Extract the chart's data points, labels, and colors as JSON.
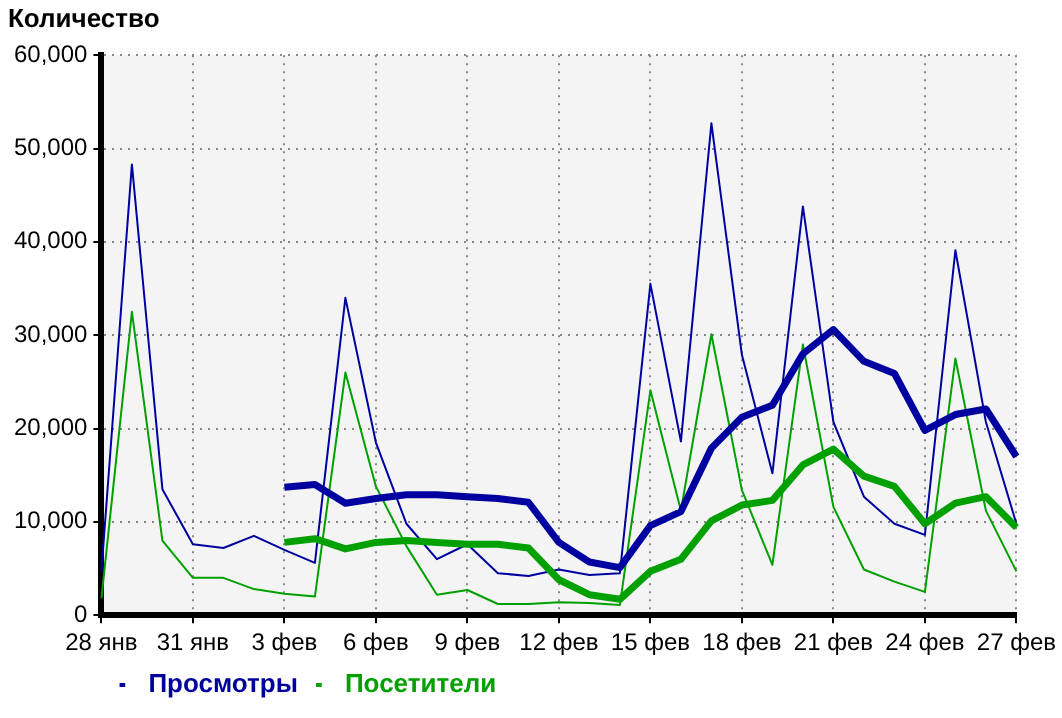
{
  "chart_data": {
    "type": "line",
    "ylabel": "Количество",
    "categories": [
      "28 янв",
      null,
      null,
      "31 янв",
      null,
      null,
      "3 фев",
      null,
      null,
      "6 фев",
      null,
      null,
      "9 фев",
      null,
      null,
      "12 фев",
      null,
      null,
      "15 фев",
      null,
      null,
      "18 фев",
      null,
      null,
      "21 фев",
      null,
      null,
      "24 фев",
      null,
      null,
      "27 фев"
    ],
    "series": [
      {
        "name": "Просмотры",
        "color": "#0000a0",
        "values": [
          4700,
          48300,
          13500,
          7600,
          7200,
          8500,
          7000,
          5600,
          34000,
          18500,
          9800,
          6000,
          7600,
          4500,
          4200,
          4900,
          4300,
          4500,
          35500,
          18600,
          52700,
          27900,
          15200,
          43800,
          20700,
          12700,
          9800,
          8600,
          39100,
          20700,
          9800
        ]
      },
      {
        "name": "Посетители",
        "color": "#00a000",
        "values": [
          1800,
          32500,
          8000,
          4000,
          4000,
          2800,
          2300,
          2000,
          26000,
          13800,
          7400,
          2200,
          2700,
          1200,
          1200,
          1400,
          1300,
          1100,
          24100,
          11200,
          30100,
          13400,
          5400,
          29000,
          11600,
          4900,
          3600,
          2500,
          27500,
          11200,
          4700
        ]
      },
      {
        "color": "#0000a0",
        "values": [
          null,
          null,
          null,
          null,
          null,
          null,
          13700,
          14000,
          12000,
          12500,
          12900,
          12900,
          12700,
          12500,
          12100,
          7800,
          5700,
          5100,
          9600,
          11100,
          17900,
          21200,
          22500,
          28000,
          30600,
          27200,
          25900,
          19800,
          21500,
          22100,
          17000
        ]
      },
      {
        "color": "#00a000",
        "values": [
          null,
          null,
          null,
          null,
          null,
          null,
          7800,
          8200,
          7100,
          7800,
          8000,
          7800,
          7600,
          7600,
          7200,
          3800,
          2200,
          1700,
          4700,
          6000,
          10100,
          11800,
          12300,
          16100,
          17800,
          14900,
          13800,
          9800,
          12000,
          12700,
          9400
        ]
      }
    ],
    "ylim": [
      0,
      60000
    ],
    "yticks": [
      0,
      {
        "value": 10000,
        "label": "10,000"
      },
      {
        "value": 20000,
        "label": "20,000"
      },
      {
        "value": 30000,
        "label": "30,000"
      },
      {
        "value": 40000,
        "label": "40,000"
      },
      {
        "value": 50000,
        "label": "50,000"
      },
      {
        "value": 60000,
        "label": "60,000"
      }
    ],
    "grid": true,
    "legend": "bottom left",
    "marker": "none"
  }
}
